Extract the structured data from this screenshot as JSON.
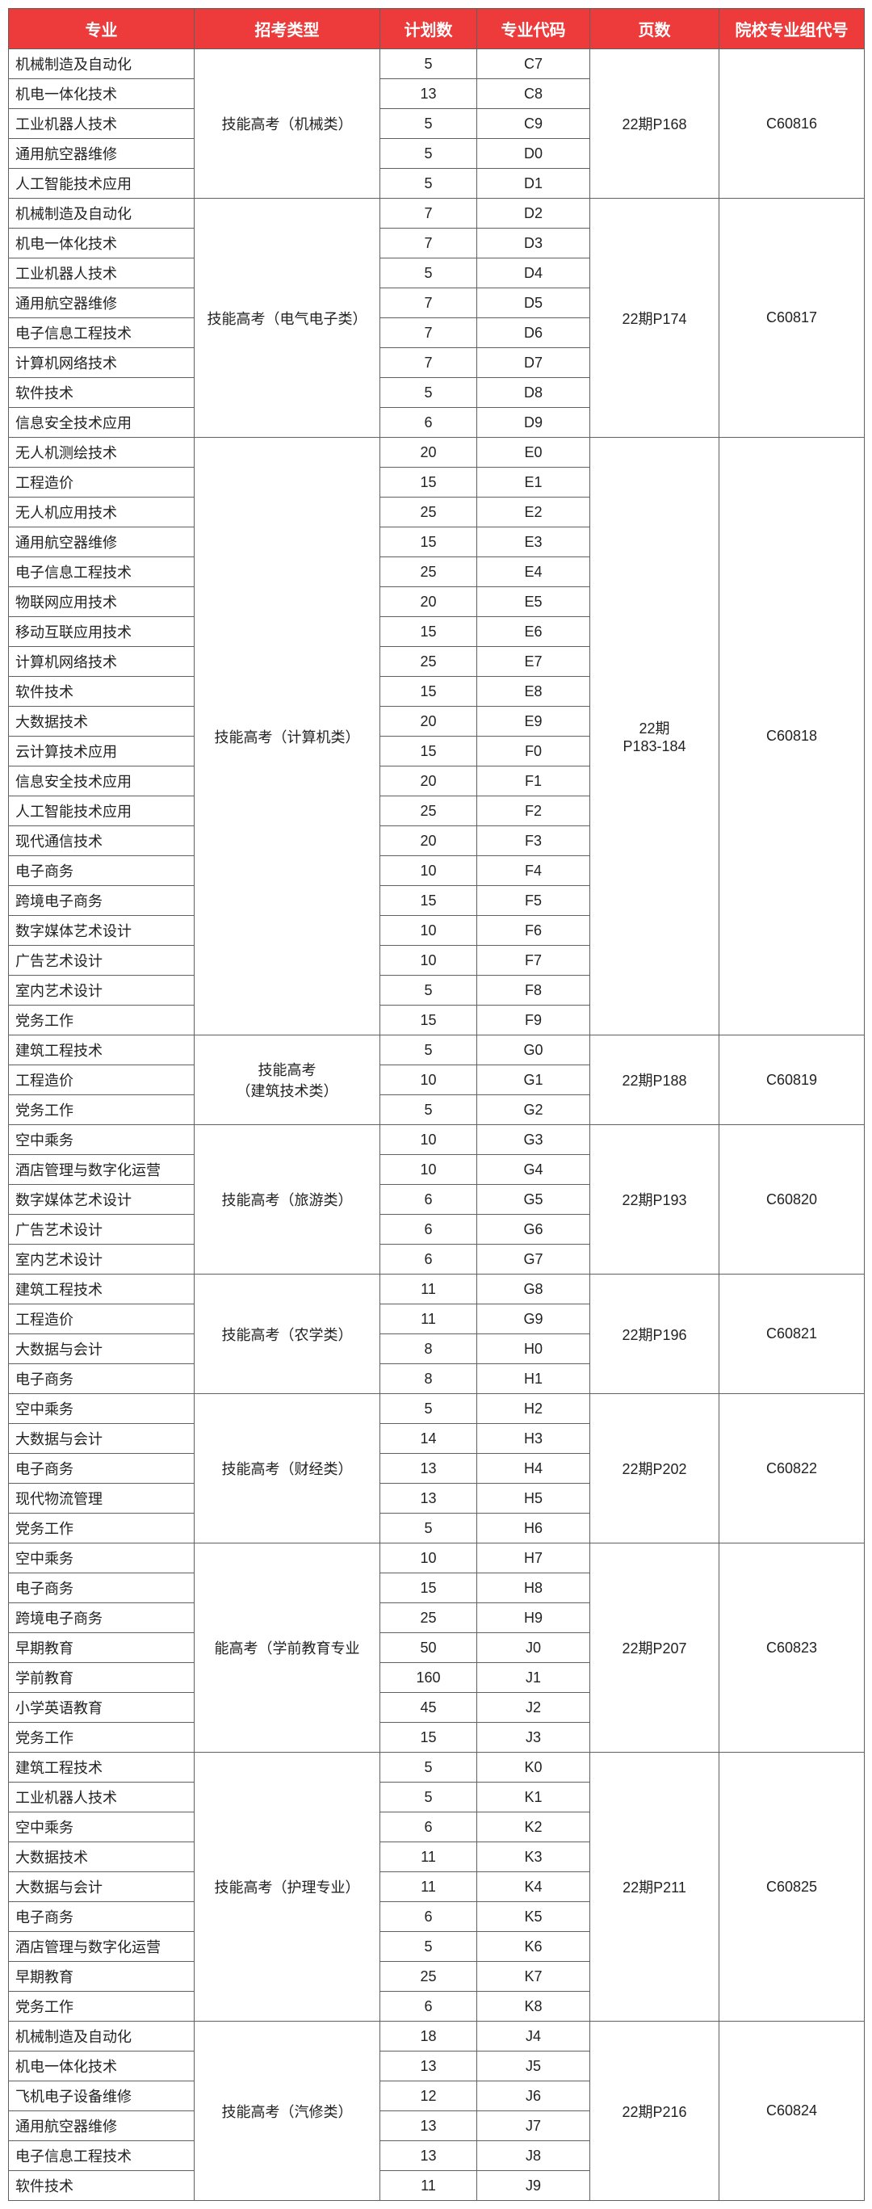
{
  "headers": [
    "专业",
    "招考类型",
    "计划数",
    "专业代码",
    "页数",
    "院校专业组代号"
  ],
  "header_bg": "#ed3b3b",
  "header_fg": "#ffffff",
  "border_color": "#606060",
  "cell_fg": "#222222",
  "font_size_header": 20,
  "font_size_cell": 18,
  "groups": [
    {
      "type": "技能高考（机械类）",
      "page": "22期P168",
      "group_code": "C60816",
      "rows": [
        {
          "major": "机械制造及自动化",
          "plan": 5,
          "code": "C7"
        },
        {
          "major": "机电一体化技术",
          "plan": 13,
          "code": "C8"
        },
        {
          "major": "工业机器人技术",
          "plan": 5,
          "code": "C9"
        },
        {
          "major": "通用航空器维修",
          "plan": 5,
          "code": "D0"
        },
        {
          "major": "人工智能技术应用",
          "plan": 5,
          "code": "D1"
        }
      ]
    },
    {
      "type": "技能高考（电气电子类）",
      "page": "22期P174",
      "group_code": "C60817",
      "rows": [
        {
          "major": "机械制造及自动化",
          "plan": 7,
          "code": "D2"
        },
        {
          "major": "机电一体化技术",
          "plan": 7,
          "code": "D3"
        },
        {
          "major": "工业机器人技术",
          "plan": 5,
          "code": "D4"
        },
        {
          "major": "通用航空器维修",
          "plan": 7,
          "code": "D5"
        },
        {
          "major": "电子信息工程技术",
          "plan": 7,
          "code": "D6"
        },
        {
          "major": "计算机网络技术",
          "plan": 7,
          "code": "D7"
        },
        {
          "major": "软件技术",
          "plan": 5,
          "code": "D8"
        },
        {
          "major": "信息安全技术应用",
          "plan": 6,
          "code": "D9"
        }
      ]
    },
    {
      "type": "技能高考（计算机类）",
      "page": "22期\nP183-184",
      "group_code": "C60818",
      "rows": [
        {
          "major": "无人机测绘技术",
          "plan": 20,
          "code": "E0"
        },
        {
          "major": "工程造价",
          "plan": 15,
          "code": "E1"
        },
        {
          "major": "无人机应用技术",
          "plan": 25,
          "code": "E2"
        },
        {
          "major": "通用航空器维修",
          "plan": 15,
          "code": "E3"
        },
        {
          "major": "电子信息工程技术",
          "plan": 25,
          "code": "E4"
        },
        {
          "major": "物联网应用技术",
          "plan": 20,
          "code": "E5"
        },
        {
          "major": "移动互联应用技术",
          "plan": 15,
          "code": "E6"
        },
        {
          "major": "计算机网络技术",
          "plan": 25,
          "code": "E7"
        },
        {
          "major": "软件技术",
          "plan": 15,
          "code": "E8"
        },
        {
          "major": "大数据技术",
          "plan": 20,
          "code": "E9"
        },
        {
          "major": "云计算技术应用",
          "plan": 15,
          "code": "F0"
        },
        {
          "major": "信息安全技术应用",
          "plan": 20,
          "code": "F1"
        },
        {
          "major": "人工智能技术应用",
          "plan": 25,
          "code": "F2"
        },
        {
          "major": "现代通信技术",
          "plan": 20,
          "code": "F3"
        },
        {
          "major": "电子商务",
          "plan": 10,
          "code": "F4"
        },
        {
          "major": "跨境电子商务",
          "plan": 15,
          "code": "F5"
        },
        {
          "major": "数字媒体艺术设计",
          "plan": 10,
          "code": "F6"
        },
        {
          "major": "广告艺术设计",
          "plan": 10,
          "code": "F7"
        },
        {
          "major": "室内艺术设计",
          "plan": 5,
          "code": "F8"
        },
        {
          "major": "党务工作",
          "plan": 15,
          "code": "F9"
        }
      ]
    },
    {
      "type": "技能高考\n（建筑技术类）",
      "page": "22期P188",
      "group_code": "C60819",
      "rows": [
        {
          "major": "建筑工程技术",
          "plan": 5,
          "code": "G0"
        },
        {
          "major": "工程造价",
          "plan": 10,
          "code": "G1"
        },
        {
          "major": "党务工作",
          "plan": 5,
          "code": "G2"
        }
      ]
    },
    {
      "type": "技能高考（旅游类）",
      "page": "22期P193",
      "group_code": "C60820",
      "rows": [
        {
          "major": "空中乘务",
          "plan": 10,
          "code": "G3"
        },
        {
          "major": "酒店管理与数字化运营",
          "plan": 10,
          "code": "G4"
        },
        {
          "major": "数字媒体艺术设计",
          "plan": 6,
          "code": "G5"
        },
        {
          "major": "广告艺术设计",
          "plan": 6,
          "code": "G6"
        },
        {
          "major": "室内艺术设计",
          "plan": 6,
          "code": "G7"
        }
      ]
    },
    {
      "type": "技能高考（农学类）",
      "page": "22期P196",
      "group_code": "C60821",
      "rows": [
        {
          "major": "建筑工程技术",
          "plan": 11,
          "code": "G8"
        },
        {
          "major": "工程造价",
          "plan": 11,
          "code": "G9"
        },
        {
          "major": "大数据与会计",
          "plan": 8,
          "code": "H0"
        },
        {
          "major": "电子商务",
          "plan": 8,
          "code": "H1"
        }
      ]
    },
    {
      "type": "技能高考（财经类）",
      "page": "22期P202",
      "group_code": "C60822",
      "rows": [
        {
          "major": "空中乘务",
          "plan": 5,
          "code": "H2"
        },
        {
          "major": "大数据与会计",
          "plan": 14,
          "code": "H3"
        },
        {
          "major": "电子商务",
          "plan": 13,
          "code": "H4"
        },
        {
          "major": "现代物流管理",
          "plan": 13,
          "code": "H5"
        },
        {
          "major": "党务工作",
          "plan": 5,
          "code": "H6"
        }
      ]
    },
    {
      "type": "能高考（学前教育专业",
      "page": "22期P207",
      "group_code": "C60823",
      "rows": [
        {
          "major": "空中乘务",
          "plan": 10,
          "code": "H7"
        },
        {
          "major": "电子商务",
          "plan": 15,
          "code": "H8"
        },
        {
          "major": "跨境电子商务",
          "plan": 25,
          "code": "H9"
        },
        {
          "major": "早期教育",
          "plan": 50,
          "code": "J0"
        },
        {
          "major": "学前教育",
          "plan": 160,
          "code": "J1"
        },
        {
          "major": "小学英语教育",
          "plan": 45,
          "code": "J2"
        },
        {
          "major": "党务工作",
          "plan": 15,
          "code": "J3"
        }
      ]
    },
    {
      "type": "技能高考（护理专业）",
      "page": "22期P211",
      "group_code": "C60825",
      "rows": [
        {
          "major": "建筑工程技术",
          "plan": 5,
          "code": "K0"
        },
        {
          "major": "工业机器人技术",
          "plan": 5,
          "code": "K1"
        },
        {
          "major": "空中乘务",
          "plan": 6,
          "code": "K2"
        },
        {
          "major": "大数据技术",
          "plan": 11,
          "code": "K3"
        },
        {
          "major": "大数据与会计",
          "plan": 11,
          "code": "K4"
        },
        {
          "major": "电子商务",
          "plan": 6,
          "code": "K5"
        },
        {
          "major": "酒店管理与数字化运营",
          "plan": 5,
          "code": "K6"
        },
        {
          "major": "早期教育",
          "plan": 25,
          "code": "K7"
        },
        {
          "major": "党务工作",
          "plan": 6,
          "code": "K8"
        }
      ]
    },
    {
      "type": "技能高考（汽修类）",
      "page": "22期P216",
      "group_code": "C60824",
      "rows": [
        {
          "major": "机械制造及自动化",
          "plan": 18,
          "code": "J4"
        },
        {
          "major": "机电一体化技术",
          "plan": 13,
          "code": "J5"
        },
        {
          "major": "飞机电子设备维修",
          "plan": 12,
          "code": "J6"
        },
        {
          "major": "通用航空器维修",
          "plan": 13,
          "code": "J7"
        },
        {
          "major": "电子信息工程技术",
          "plan": 13,
          "code": "J8"
        },
        {
          "major": "软件技术",
          "plan": 11,
          "code": "J9"
        }
      ]
    }
  ]
}
